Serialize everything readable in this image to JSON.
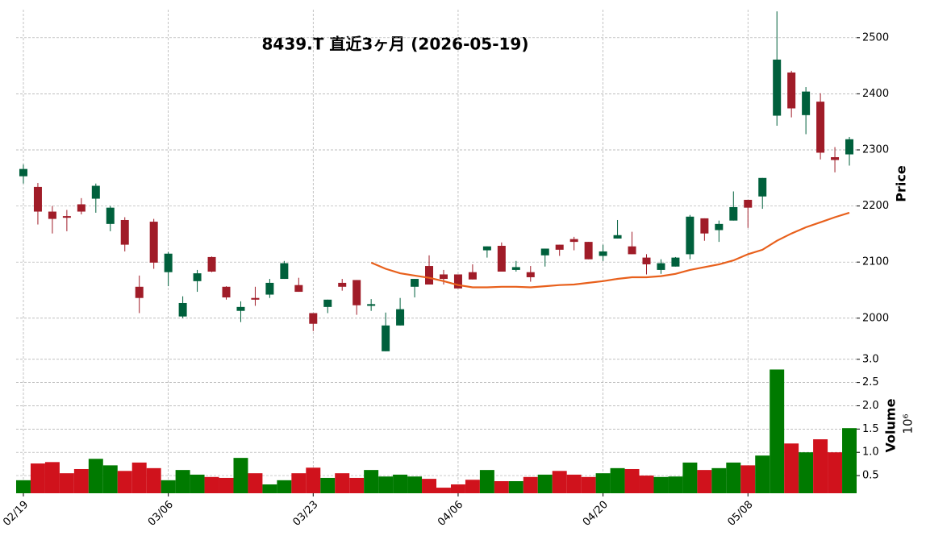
{
  "chart_data": {
    "type": "candlestick",
    "title": "8439.T  直近3ヶ月  (2026-05-19)",
    "ylabel": "Price",
    "volume_label": "Volume",
    "volume_exponent": "10⁶",
    "categories": [
      "02/19",
      null,
      null,
      null,
      null,
      null,
      null,
      null,
      null,
      null,
      "03/06",
      null,
      null,
      null,
      null,
      null,
      null,
      null,
      null,
      null,
      "03/23",
      null,
      null,
      null,
      null,
      null,
      null,
      null,
      null,
      null,
      "04/06",
      null,
      null,
      null,
      null,
      null,
      null,
      null,
      null,
      null,
      "04/20",
      null,
      null,
      null,
      null,
      null,
      null,
      null,
      null,
      null,
      "05/08",
      null,
      null,
      null,
      null,
      null,
      null,
      null
    ],
    "open": [
      2253,
      2234,
      2190,
      2182,
      2203,
      2213,
      2168,
      2175,
      2056,
      2172,
      2082,
      2003,
      2066,
      2109,
      2056,
      2013,
      2036,
      2042,
      2070,
      2059,
      2009,
      2020,
      2063,
      2068,
      2022,
      1941,
      1987,
      2056,
      2093,
      2078,
      2078,
      2082,
      2121,
      2129,
      2086,
      2082,
      2112,
      2131,
      2141,
      2136,
      2111,
      2142,
      2128,
      2108,
      2086,
      2092,
      2114,
      2178,
      2157,
      2174,
      2211,
      2217,
      2361,
      2438,
      2362,
      2386,
      2287,
      2292
    ],
    "high": [
      2274,
      2241,
      2200,
      2193,
      2214,
      2240,
      2200,
      2180,
      2076,
      2177,
      2118,
      2039,
      2086,
      2110,
      2057,
      2030,
      2056,
      2070,
      2102,
      2072,
      2009,
      2033,
      2070,
      2068,
      2034,
      2010,
      2036,
      2070,
      2112,
      2086,
      2078,
      2096,
      2128,
      2135,
      2102,
      2093,
      2124,
      2131,
      2145,
      2136,
      2131,
      2175,
      2154,
      2114,
      2105,
      2109,
      2184,
      2178,
      2174,
      2226,
      2211,
      2250,
      2547,
      2441,
      2412,
      2401,
      2305,
      2323
    ],
    "low": [
      2240,
      2167,
      2151,
      2155,
      2185,
      2188,
      2155,
      2119,
      2009,
      2088,
      2057,
      2000,
      2047,
      2082,
      2033,
      1993,
      2022,
      2036,
      2070,
      2047,
      1977,
      2009,
      2049,
      2006,
      2013,
      1941,
      1987,
      2037,
      2060,
      2060,
      2053,
      2069,
      2108,
      2083,
      2083,
      2065,
      2092,
      2111,
      2121,
      2105,
      2102,
      2142,
      2114,
      2078,
      2079,
      2092,
      2105,
      2138,
      2136,
      2174,
      2161,
      2195,
      2343,
      2358,
      2328,
      2283,
      2260,
      2272
    ],
    "close": [
      2266,
      2190,
      2177,
      2179,
      2190,
      2236,
      2197,
      2131,
      2036,
      2099,
      2115,
      2027,
      2080,
      2083,
      2037,
      2020,
      2033,
      2063,
      2098,
      2047,
      1990,
      2033,
      2056,
      2023,
      2025,
      1987,
      2016,
      2070,
      2060,
      2070,
      2053,
      2069,
      2128,
      2083,
      2091,
      2073,
      2124,
      2122,
      2136,
      2105,
      2119,
      2148,
      2114,
      2096,
      2098,
      2108,
      2181,
      2151,
      2168,
      2198,
      2197,
      2250,
      2461,
      2374,
      2404,
      2295,
      2282,
      2319
    ],
    "volume": [
      0.4,
      0.76,
      0.79,
      0.55,
      0.64,
      0.86,
      0.72,
      0.6,
      0.78,
      0.66,
      0.4,
      0.62,
      0.52,
      0.47,
      0.45,
      0.88,
      0.55,
      0.31,
      0.4,
      0.55,
      0.67,
      0.45,
      0.55,
      0.45,
      0.62,
      0.48,
      0.52,
      0.48,
      0.43,
      0.24,
      0.31,
      0.41,
      0.62,
      0.38,
      0.38,
      0.47,
      0.52,
      0.6,
      0.52,
      0.47,
      0.55,
      0.66,
      0.64,
      0.5,
      0.47,
      0.48,
      0.78,
      0.62,
      0.66,
      0.78,
      0.72,
      0.93,
      2.78,
      1.19,
      1.0,
      1.28,
      1.0,
      1.52
    ],
    "mav": {
      "color": "#e8601c",
      "values": [
        null,
        null,
        null,
        null,
        null,
        null,
        null,
        null,
        null,
        null,
        null,
        null,
        null,
        null,
        null,
        null,
        null,
        null,
        null,
        null,
        null,
        null,
        null,
        null,
        2099,
        2088,
        2080,
        2076,
        2072,
        2066,
        2059,
        2055,
        2055,
        2056,
        2056,
        2055,
        2057,
        2059,
        2060,
        2063,
        2066,
        2070,
        2073,
        2073,
        2075,
        2079,
        2086,
        2091,
        2096,
        2103,
        2114,
        2122,
        2138,
        2151,
        2162,
        2171,
        2180,
        2188
      ]
    },
    "up_color": "#00603c",
    "down_color": "#a01c28",
    "volume_up_color": "#007a00",
    "volume_down_color": "#d0121c",
    "ylim": [
      1935,
      2550
    ],
    "yticks": [
      2000,
      2100,
      2200,
      2300,
      2400,
      2500
    ],
    "volume_ylim": [
      0.12,
      3.1
    ],
    "volume_yticks": [
      0.5,
      {
        "value": 1,
        "label": "1.0"
      },
      1.5,
      {
        "value": 2,
        "label": "2.0"
      },
      2.5,
      {
        "value": 3,
        "label": "3.0"
      }
    ],
    "grid": true
  }
}
